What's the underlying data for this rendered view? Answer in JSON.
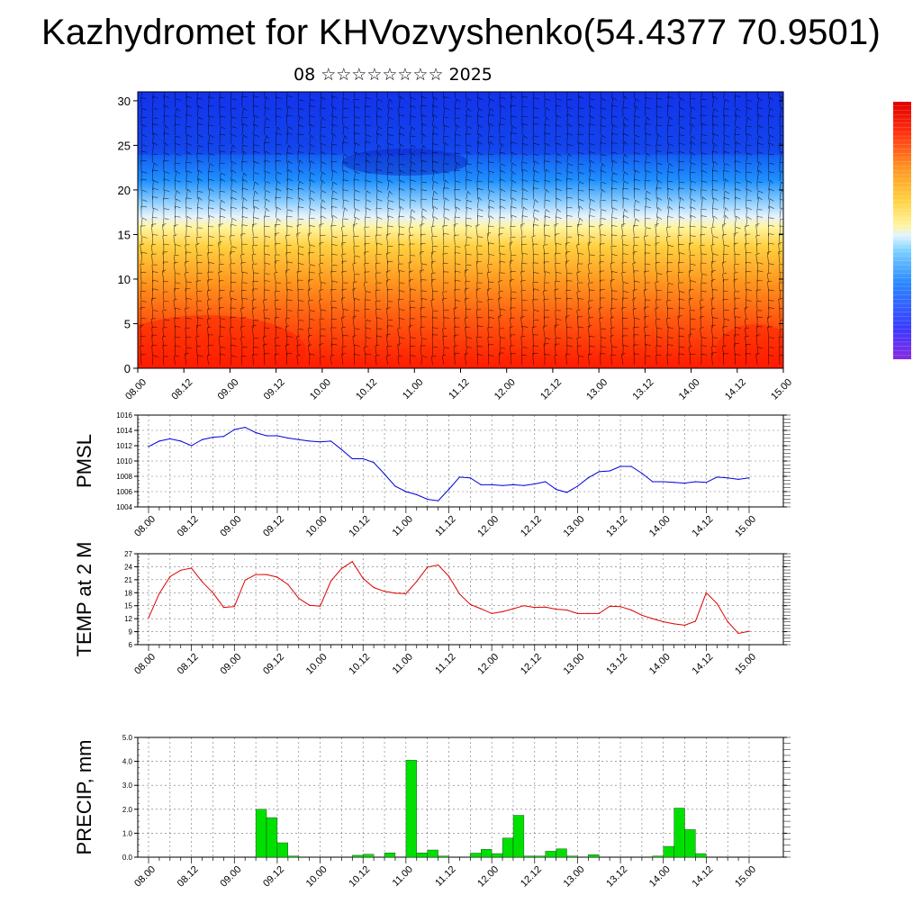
{
  "title": "Kazhydromet for KHVozvyshenko(54.4377 70.9501)",
  "subtitle": "08 ☆☆☆☆☆☆☆☆ 2025",
  "x_tick_labels": [
    "08.00",
    "08.12",
    "09.00",
    "09.12",
    "10.00",
    "10.12",
    "11.00",
    "11.12",
    "12.00",
    "12.12",
    "13.00",
    "13.12",
    "14.00",
    "14.12",
    "15.00"
  ],
  "colors": {
    "pmsl_line": "#0000dd",
    "temp_line": "#dd0000",
    "precip_bar": "#00e000",
    "colorbar_top": "#ff1a1a",
    "colorbar_mid": "#ffee66",
    "colorbar_bottom": "#8a2be2"
  },
  "chart_data": [
    {
      "type": "heatmap",
      "name": "cross-section",
      "x_ticks": [
        "08.00",
        "08.12",
        "09.00",
        "09.12",
        "10.00",
        "10.12",
        "11.00",
        "11.12",
        "12.00",
        "12.12",
        "13.00",
        "13.12",
        "14.00",
        "14.12",
        "15.00"
      ],
      "y_ticks": [
        "0",
        "5",
        "10",
        "15",
        "20",
        "25",
        "30"
      ],
      "ylim": [
        0,
        31
      ],
      "note_levels": {
        "boundary_by_time": [
          14,
          15.5,
          16.5,
          17,
          17.5,
          17.2,
          16.8,
          16.5,
          16,
          15.8,
          15.5,
          15.5,
          15.5,
          15.8,
          15.5
        ]
      }
    },
    {
      "type": "line",
      "ylabel": "PMSL",
      "ylim": [
        1004,
        1016
      ],
      "y_ticks": [
        "1004",
        "1006",
        "1008",
        "1010",
        "1012",
        "1014",
        "1016"
      ],
      "x_ticks": [
        "08.00",
        "08.12",
        "09.00",
        "09.12",
        "10.00",
        "10.12",
        "11.00",
        "11.12",
        "12.00",
        "12.12",
        "13.00",
        "13.12",
        "14.00",
        "14.12",
        "15.00"
      ],
      "x": [
        0,
        0.125,
        0.25,
        0.375,
        0.5,
        0.625,
        0.75,
        0.875,
        1,
        1.125,
        1.25,
        1.375,
        1.5,
        1.625,
        1.75,
        1.875,
        2,
        2.125,
        2.25,
        2.375,
        2.5,
        2.625,
        2.75,
        2.875,
        3,
        3.125,
        3.25,
        3.375,
        3.5,
        3.625,
        3.75,
        3.875,
        4,
        4.125,
        4.25,
        4.375,
        4.5,
        4.625,
        4.75,
        4.875,
        5,
        5.125,
        5.25,
        5.375,
        5.5,
        5.625,
        5.75,
        5.875,
        6,
        6.125,
        6.25,
        6.375,
        6.5,
        6.625,
        6.75,
        6.875,
        7
      ],
      "values": [
        1011.9,
        1012.6,
        1012.9,
        1012.6,
        1012.0,
        1012.8,
        1013.1,
        1013.2,
        1014.1,
        1014.4,
        1013.7,
        1013.3,
        1013.3,
        1013.0,
        1012.8,
        1012.6,
        1012.5,
        1012.6,
        1011.5,
        1010.3,
        1010.3,
        1009.8,
        1008.3,
        1006.7,
        1006.0,
        1005.6,
        1005.0,
        1004.8,
        1006.3,
        1007.9,
        1007.8,
        1006.9,
        1006.9,
        1006.8,
        1006.9,
        1006.8,
        1007.0,
        1007.3,
        1006.3,
        1005.9,
        1006.7,
        1007.8,
        1008.6,
        1008.7,
        1009.3,
        1009.3,
        1008.4,
        1007.3,
        1007.3,
        1007.2,
        1007.1,
        1007.3,
        1007.2,
        1007.9,
        1007.8,
        1007.6,
        1007.8
      ]
    },
    {
      "type": "line",
      "ylabel": "TEMP at 2 M",
      "ylim": [
        6,
        27
      ],
      "y_ticks": [
        "6",
        "9",
        "12",
        "15",
        "18",
        "21",
        "24",
        "27"
      ],
      "x_ticks": [
        "08.00",
        "08.12",
        "09.00",
        "09.12",
        "10.00",
        "10.12",
        "11.00",
        "11.12",
        "12.00",
        "12.12",
        "13.00",
        "13.12",
        "14.00",
        "14.12",
        "15.00"
      ],
      "x": [
        0,
        0.125,
        0.25,
        0.375,
        0.5,
        0.625,
        0.75,
        0.875,
        1,
        1.125,
        1.25,
        1.375,
        1.5,
        1.625,
        1.75,
        1.875,
        2,
        2.125,
        2.25,
        2.375,
        2.5,
        2.625,
        2.75,
        2.875,
        3,
        3.125,
        3.25,
        3.375,
        3.5,
        3.625,
        3.75,
        3.875,
        4,
        4.125,
        4.25,
        4.375,
        4.5,
        4.625,
        4.75,
        4.875,
        5,
        5.125,
        5.25,
        5.375,
        5.5,
        5.625,
        5.75,
        5.875,
        6,
        6.125,
        6.25,
        6.375,
        6.5,
        6.625,
        6.75,
        6.875,
        7
      ],
      "values": [
        12.2,
        17.8,
        21.7,
        23.2,
        23.7,
        20.5,
        18.0,
        14.6,
        14.8,
        20.9,
        22.2,
        22.2,
        21.6,
        19.9,
        16.7,
        15.1,
        14.9,
        20.7,
        23.6,
        25.2,
        21.3,
        19.2,
        18.3,
        17.9,
        17.8,
        20.6,
        23.9,
        24.4,
        21.8,
        17.7,
        15.3,
        14.3,
        13.2,
        13.6,
        14.3,
        15.0,
        14.6,
        14.7,
        14.2,
        14.0,
        13.2,
        13.2,
        13.2,
        14.9,
        14.8,
        14.0,
        12.8,
        12.0,
        11.3,
        10.8,
        10.5,
        11.4,
        18.0,
        15.5,
        11.3,
        8.6,
        9.1
      ]
    },
    {
      "type": "bar",
      "ylabel": "PRECIP, mm",
      "ylim": [
        0,
        5
      ],
      "y_ticks": [
        "0.0",
        "1.0",
        "2.0",
        "3.0",
        "4.0",
        "5.0"
      ],
      "x_ticks": [
        "08.00",
        "08.12",
        "09.00",
        "09.12",
        "10.00",
        "10.12",
        "11.00",
        "11.12",
        "12.00",
        "12.12",
        "13.00",
        "13.12",
        "14.00",
        "14.12",
        "15.00"
      ],
      "x": [
        0,
        0.125,
        0.25,
        0.375,
        0.5,
        0.625,
        0.75,
        0.875,
        1,
        1.125,
        1.25,
        1.375,
        1.5,
        1.625,
        1.75,
        1.875,
        2,
        2.125,
        2.25,
        2.375,
        2.5,
        2.625,
        2.75,
        2.875,
        3,
        3.125,
        3.25,
        3.375,
        3.5,
        3.625,
        3.75,
        3.875,
        4,
        4.125,
        4.25,
        4.375,
        4.5,
        4.625,
        4.75,
        4.875,
        5,
        5.125,
        5.25,
        5.375,
        5.5,
        5.625,
        5.75,
        5.875,
        6,
        6.125,
        6.25,
        6.375,
        6.5,
        6.625,
        6.75,
        6.875,
        7
      ],
      "values": [
        0,
        0,
        0,
        0,
        0,
        0,
        0,
        0,
        0,
        0,
        2.0,
        1.65,
        0.6,
        0.05,
        0,
        0,
        0,
        0,
        0,
        0.08,
        0.12,
        0,
        0.18,
        0,
        4.05,
        0.18,
        0.3,
        0.05,
        0,
        0,
        0.17,
        0.33,
        0.15,
        0.8,
        1.75,
        0.05,
        0.05,
        0.25,
        0.35,
        0.05,
        0,
        0.1,
        0,
        0,
        0,
        0,
        0,
        0.05,
        0.45,
        2.05,
        1.15,
        0.15,
        0,
        0,
        0,
        0,
        0
      ]
    }
  ]
}
